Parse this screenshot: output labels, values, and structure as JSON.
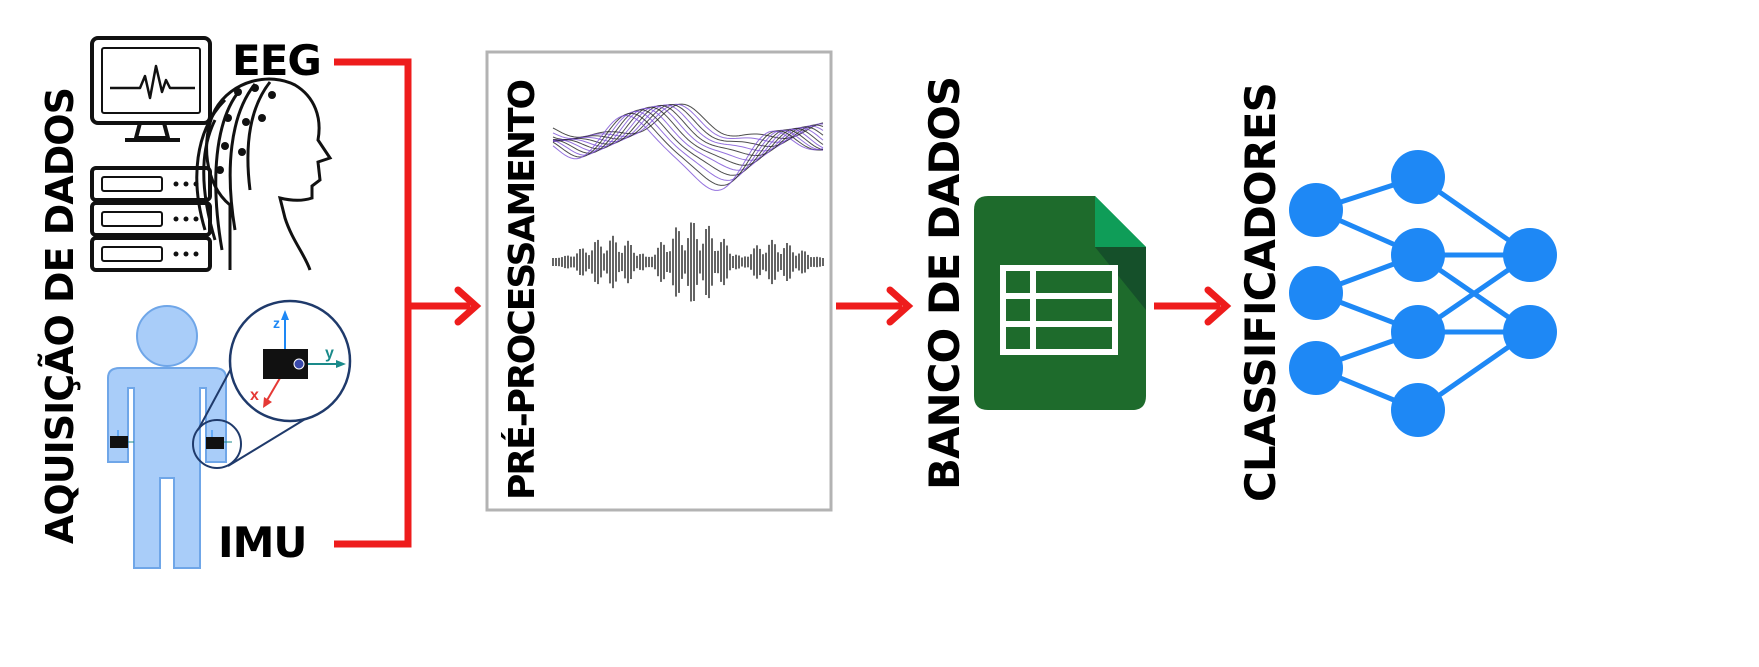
{
  "labels": {
    "acquisition": "AQUISIÇÃO DE DADOS",
    "eeg": "EEG",
    "imu": "IMU",
    "preprocessing": "PRÉ-PROCESSAMENTO",
    "database": "BANCO DE DADOS",
    "classifiers": "CLASSIFICADORES"
  },
  "imu_axes": {
    "x": "x",
    "y": "y",
    "z": "z"
  },
  "colors": {
    "arrow": "#ee1c1c",
    "body": "#a9cdf9",
    "body_stroke": "#6fa6e8",
    "sheet_green": "#1e6b2c",
    "sheet_fold": "#0f9d58",
    "network": "#1e88f5",
    "processing_box": "#b3b3b3"
  },
  "icons": [
    "eeg-monitor-icon",
    "eeg-head-icon",
    "human-body-icon",
    "imu-sensor-icon",
    "spreadsheet-icon",
    "neural-network-icon"
  ]
}
